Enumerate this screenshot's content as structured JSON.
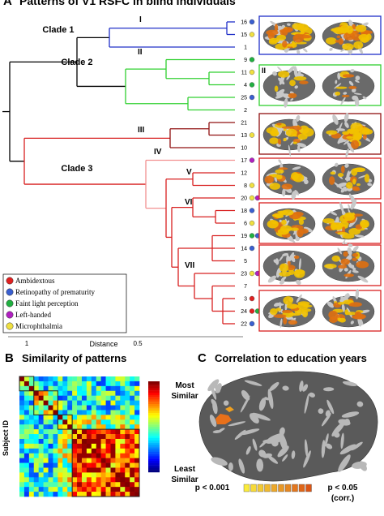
{
  "panel_a": {
    "letter": "A",
    "title": "Patterns of V1 RSFC in blind individuals",
    "clades": [
      "Clade 1",
      "Clade 2",
      "Clade 3"
    ],
    "clusters": [
      "I",
      "II",
      "III",
      "IV",
      "V",
      "VI",
      "VII"
    ],
    "leaves": [
      "16",
      "15",
      "1",
      "9",
      "11",
      "4",
      "25",
      "2",
      "21",
      "13",
      "10",
      "17",
      "12",
      "8",
      "20",
      "18",
      "6",
      "19",
      "14",
      "5",
      "23",
      "7",
      "3",
      "24",
      "22"
    ],
    "leaf_markers": [
      [
        1
      ],
      [
        4
      ],
      [],
      [
        2
      ],
      [
        4
      ],
      [
        2
      ],
      [
        1
      ],
      [],
      [],
      [
        4
      ],
      [],
      [
        3
      ],
      [],
      [
        4
      ],
      [
        4,
        3
      ],
      [
        1
      ],
      [
        4
      ],
      [
        2,
        1
      ],
      [
        1
      ],
      [],
      [
        4,
        3
      ],
      [],
      [
        0
      ],
      [
        0,
        2
      ],
      [
        1
      ]
    ],
    "legend": [
      {
        "label": "Ambidextous",
        "color": "#e02020"
      },
      {
        "label": "Retinopathy of prematurity",
        "color": "#3a5fd0"
      },
      {
        "label": "Faint light perception",
        "color": "#20b040"
      },
      {
        "label": "Left-handed",
        "color": "#b020c0"
      },
      {
        "label": "Microphthalmia",
        "color": "#f0e040"
      }
    ],
    "axis_label": "Distance",
    "xticks": [
      1,
      0.5
    ]
  },
  "panel_b": {
    "letter": "B",
    "title": "Similarity of patterns",
    "y_label": "Subject ID",
    "colorbar_top": [
      "Most",
      "Similar"
    ],
    "colorbar_bottom": [
      "Least",
      "Similar"
    ]
  },
  "panel_c": {
    "letter": "C",
    "title": "Correlation to education years",
    "scale_low": "p < 0.001",
    "scale_high": [
      "p < 0.05",
      "(corr.)"
    ]
  }
}
